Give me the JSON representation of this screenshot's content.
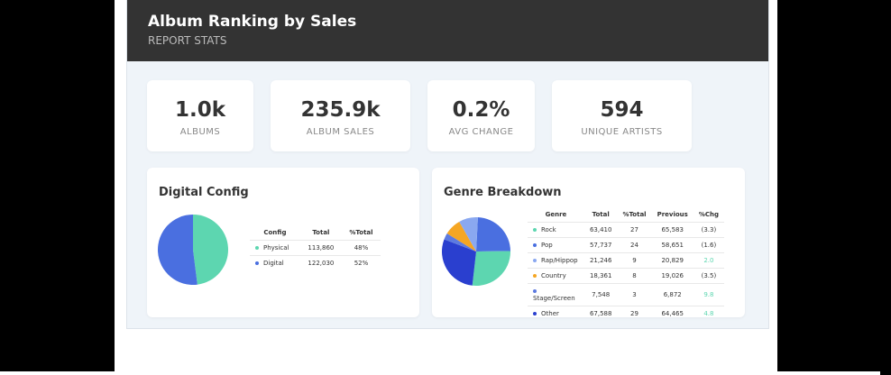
{
  "header": {
    "title": "Album Ranking by Sales",
    "subtitle": "REPORT STATS"
  },
  "kpis": [
    {
      "value": "1.0k",
      "label": "ALBUMS"
    },
    {
      "value": "235.9k",
      "label": "ALBUM SALES"
    },
    {
      "value": "0.2%",
      "label": "AVG CHANGE"
    },
    {
      "value": "594",
      "label": "UNIQUE ARTISTS"
    }
  ],
  "digital": {
    "title": "Digital Config",
    "headers": [
      "Config",
      "Total",
      "%Total"
    ],
    "rows": [
      {
        "name": "Physical",
        "total": "113,860",
        "pct": "48%",
        "color": "#5dd6b0",
        "share": 48
      },
      {
        "name": "Digital",
        "total": "122,030",
        "pct": "52%",
        "color": "#4a6fe0",
        "share": 52
      }
    ]
  },
  "genre": {
    "title": "Genre Breakdown",
    "headers": [
      "Genre",
      "Total",
      "%Total",
      "Previous",
      "%Chg"
    ],
    "rows": [
      {
        "name": "Rock",
        "total": "63,410",
        "pct": "27",
        "prev": "65,583",
        "chg": "(3.3)",
        "color": "#5dd6b0",
        "positive": false
      },
      {
        "name": "Pop",
        "total": "57,737",
        "pct": "24",
        "prev": "58,651",
        "chg": "(1.6)",
        "color": "#4a6fe0",
        "positive": false
      },
      {
        "name": "Rap/Hippop",
        "total": "21,246",
        "pct": "9",
        "prev": "20,829",
        "chg": "2.0",
        "color": "#8aa8f0",
        "positive": true
      },
      {
        "name": "Country",
        "total": "18,361",
        "pct": "8",
        "prev": "19,026",
        "chg": "(3.5)",
        "color": "#f5a623",
        "positive": false
      },
      {
        "name": "Stage/Screen",
        "total": "7,548",
        "pct": "3",
        "prev": "6,872",
        "chg": "9.8",
        "color": "#5c7ae0",
        "positive": true
      },
      {
        "name": "Other",
        "total": "67,588",
        "pct": "29",
        "prev": "64,465",
        "chg": "4.8",
        "color": "#2a3fcf",
        "positive": true
      }
    ]
  }
}
